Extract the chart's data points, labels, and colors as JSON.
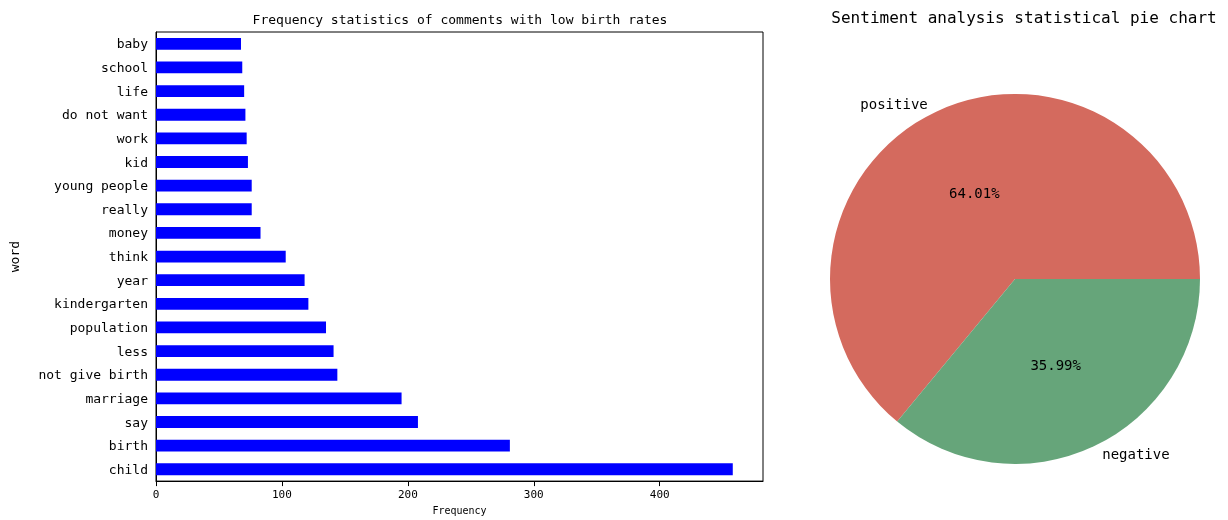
{
  "chart_data": [
    {
      "type": "bar",
      "title": "Frequency statistics of comments with low birth rates",
      "orientation": "horizontal",
      "xlabel": "Frequency",
      "ylabel": "word",
      "categories": [
        "baby",
        "school",
        "life",
        "do not want",
        "work",
        "kid",
        "young people",
        "really",
        "money",
        "think",
        "year",
        "kindergarten",
        "population",
        "less",
        "not give birth",
        "marriage",
        "say",
        "birth",
        "child"
      ],
      "values": [
        67.5,
        68.5,
        70,
        71,
        72,
        73,
        76,
        76,
        83,
        103,
        118,
        121,
        135,
        141,
        144,
        195,
        208,
        281,
        458
      ],
      "color": "#0000ff",
      "xlim": [
        0,
        482
      ],
      "xticks": [
        0,
        100,
        200,
        300,
        400
      ],
      "grid": false
    },
    {
      "type": "pie",
      "title": "Sentiment analysis statistical pie chart",
      "categories": [
        "positive",
        "negative"
      ],
      "values": [
        64.01,
        35.99
      ],
      "colors": [
        "#d46a5e",
        "#66a57a"
      ],
      "value_labels": [
        "64.01%",
        "35.99%"
      ]
    }
  ]
}
